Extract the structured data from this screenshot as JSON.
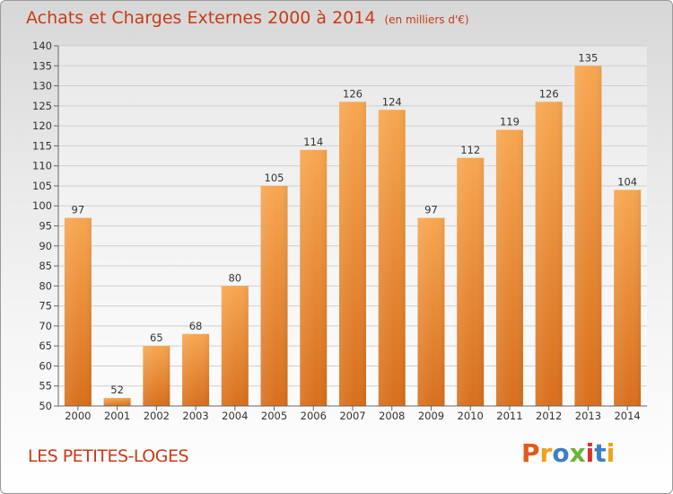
{
  "header": {
    "title": "Achats et Charges Externes 2000 à 2014",
    "unit": "(en milliers d'€)"
  },
  "footer": {
    "commune": "LES PETITES-LOGES",
    "logo_letters": [
      "P",
      "r",
      "o",
      "x",
      "i",
      "t",
      "i"
    ]
  },
  "colors": {
    "title": "#c83b18",
    "bar_light": "#f7a650",
    "bar_dark": "#d86f1c",
    "grid": "#cfcfcf"
  },
  "chart_data": {
    "type": "bar",
    "title": "Achats et Charges Externes 2000 à 2014",
    "subtitle": "(en milliers d'€)",
    "xlabel": "",
    "ylabel": "",
    "categories": [
      "2000",
      "2001",
      "2002",
      "2003",
      "2004",
      "2005",
      "2006",
      "2007",
      "2008",
      "2009",
      "2010",
      "2011",
      "2012",
      "2013",
      "2014"
    ],
    "values": [
      97,
      52,
      65,
      68,
      80,
      105,
      114,
      126,
      124,
      97,
      112,
      119,
      126,
      135,
      104
    ],
    "ylim": [
      50,
      140
    ],
    "yticks": [
      50,
      55,
      60,
      65,
      70,
      75,
      80,
      85,
      90,
      95,
      100,
      105,
      110,
      115,
      120,
      125,
      130,
      135,
      140
    ],
    "data_labels": true,
    "grid": true,
    "legend": "none"
  }
}
